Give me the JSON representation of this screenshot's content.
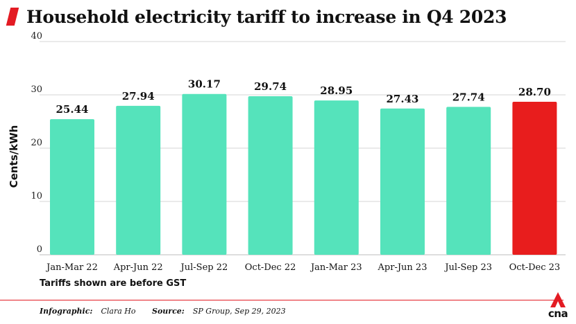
{
  "title": "Household electricity tariff to increase in Q4 2023",
  "footnote": "Tariffs shown are before GST",
  "credits": {
    "infographic_label": "Infographic:",
    "infographic_value": "Clara Ho",
    "source_label": "Source:",
    "source_value": "SP Group, Sep 29, 2023"
  },
  "logo_text": "cna",
  "colors": {
    "bar": "#55e3bb",
    "highlight": "#e81d1d",
    "accent": "#e31b23",
    "grid": "#d4d4d4"
  },
  "chart_data": {
    "type": "bar",
    "categories": [
      "Jan-Mar 22",
      "Apr-Jun 22",
      "Jul-Sep 22",
      "Oct-Dec 22",
      "Jan-Mar 23",
      "Apr-Jun 23",
      "Jul-Sep 23",
      "Oct-Dec 23"
    ],
    "values": [
      25.44,
      27.94,
      30.17,
      29.74,
      28.95,
      27.43,
      27.74,
      28.7
    ],
    "value_labels": [
      "25.44",
      "27.94",
      "30.17",
      "29.74",
      "28.95",
      "27.43",
      "27.74",
      "28.70"
    ],
    "highlight_index": 7,
    "title": "Household electricity tariff to increase in Q4 2023",
    "xlabel": "",
    "ylabel": "Cents/kWh",
    "ylim": [
      0,
      40
    ],
    "yticks": [
      0,
      10,
      20,
      30,
      40
    ],
    "grid": true
  }
}
